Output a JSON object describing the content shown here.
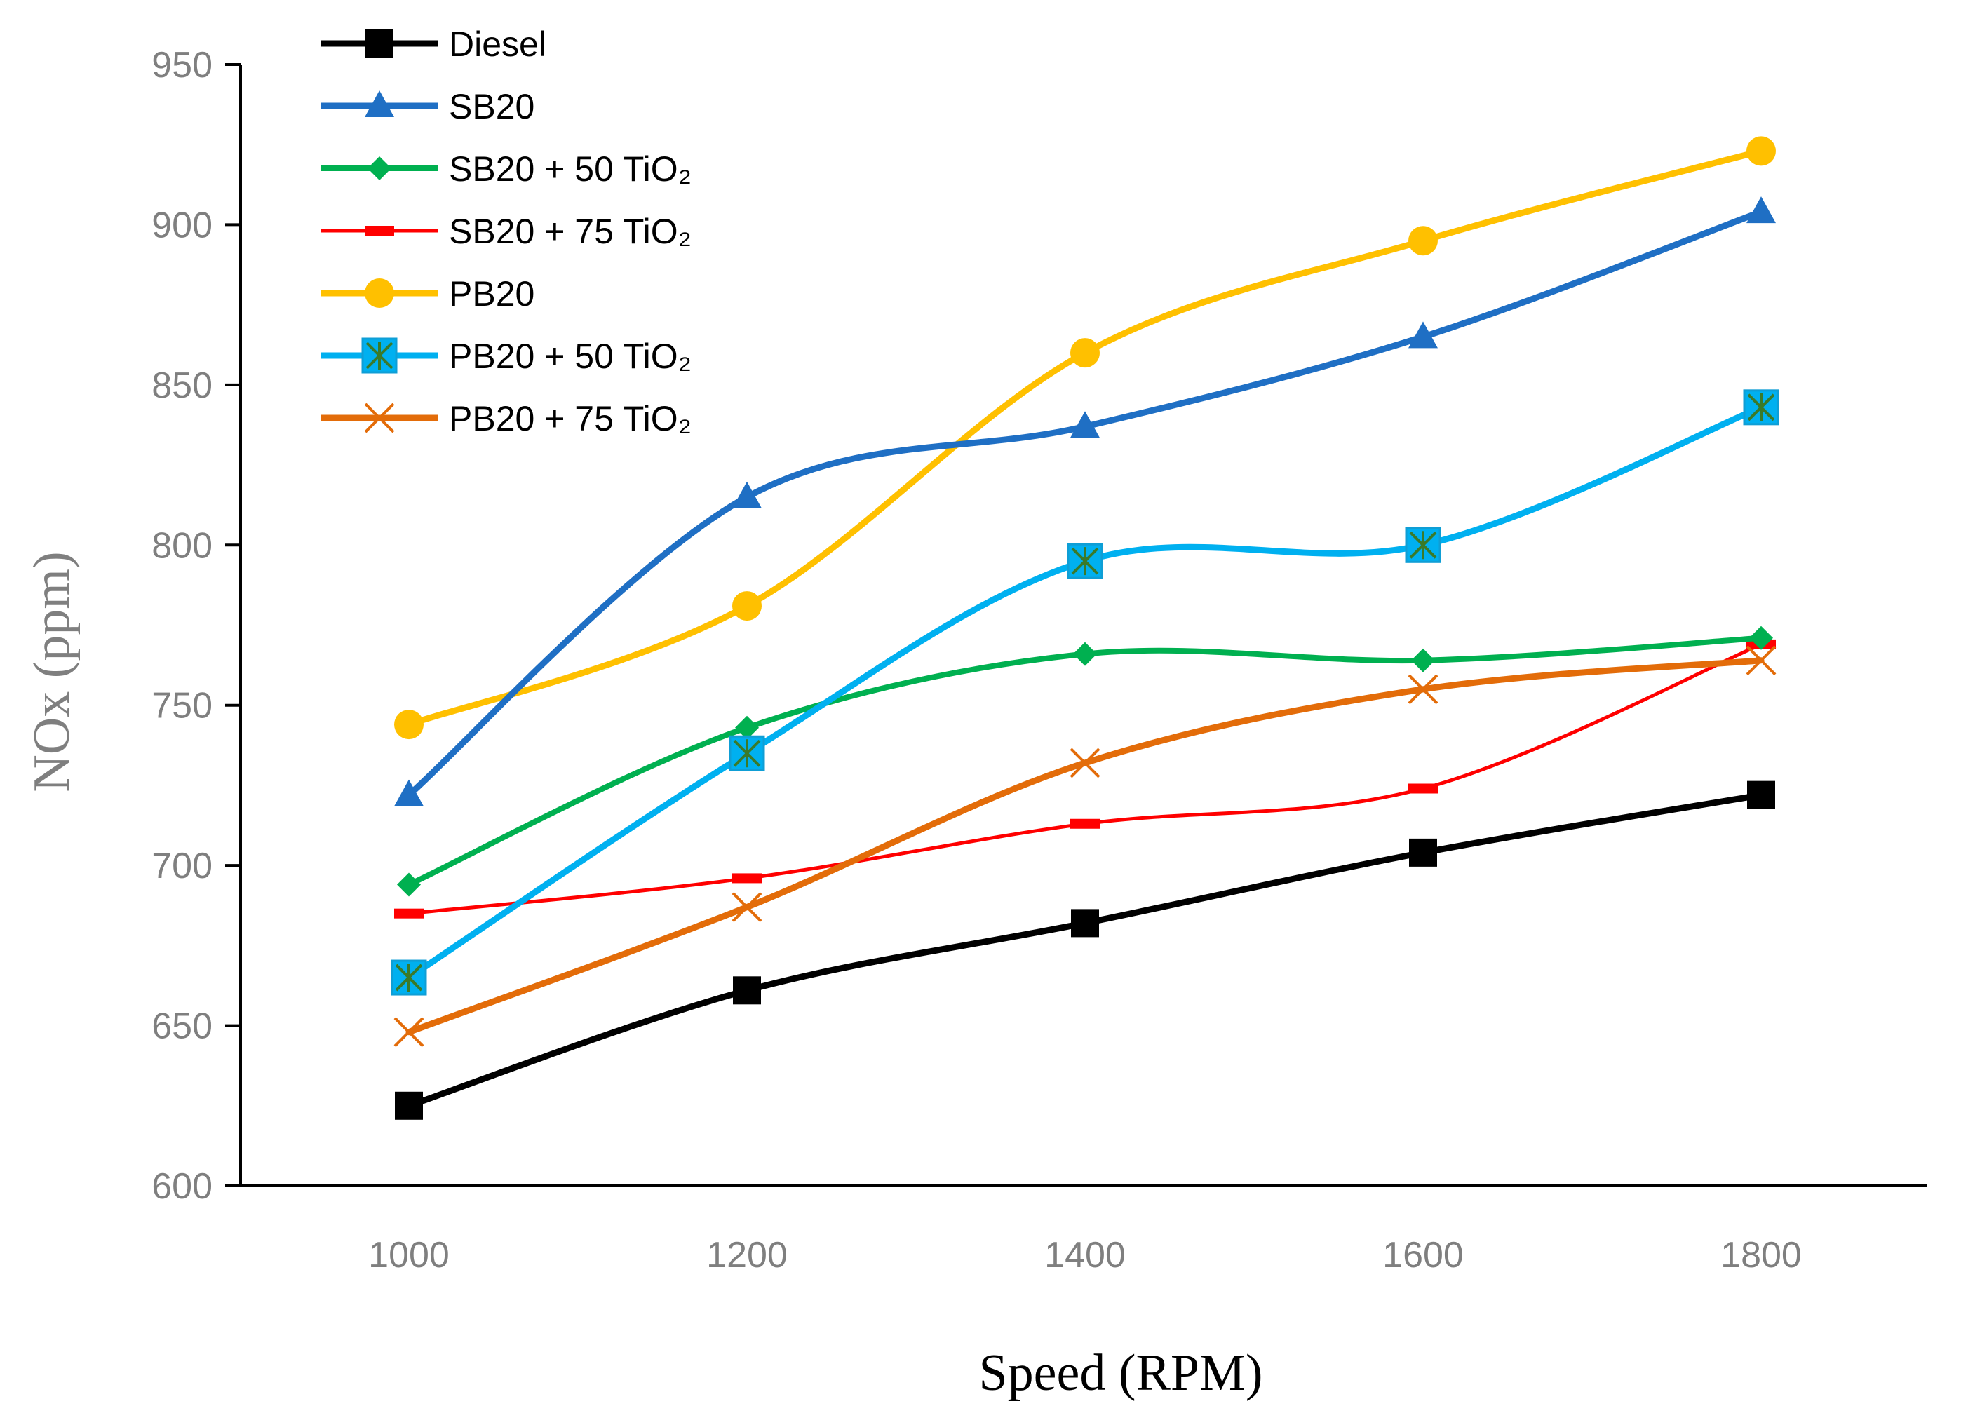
{
  "chart_data": {
    "type": "line",
    "title": "",
    "xlabel": "Speed (RPM)",
    "ylabel": "NOx (ppm)",
    "x": [
      1000,
      1200,
      1400,
      1600,
      1800
    ],
    "x_tick_labels": [
      "1000",
      "1200",
      "1400",
      "1600",
      "1800"
    ],
    "ylim": [
      600,
      950
    ],
    "y_ticks": [
      600,
      650,
      700,
      750,
      800,
      850,
      900,
      950
    ],
    "y_tick_labels": [
      "600",
      "650",
      "700",
      "750",
      "800",
      "850",
      "900",
      "950"
    ],
    "grid": false,
    "legend_position": "top-left",
    "series": [
      {
        "name": "Diesel",
        "color": "#000000",
        "marker": "square",
        "values": [
          625,
          661,
          682,
          704,
          722
        ]
      },
      {
        "name": "SB20",
        "color": "#1f6fc4",
        "marker": "triangle",
        "values": [
          722,
          815,
          837,
          865,
          904
        ]
      },
      {
        "name": "SB20 + 50 TiO₂",
        "color": "#00b050",
        "marker": "diamond",
        "values": [
          694,
          743,
          766,
          764,
          771
        ]
      },
      {
        "name": "SB20 + 75 TiO₂",
        "color": "#ff0000",
        "marker": "dash",
        "values": [
          685,
          696,
          713,
          724,
          769
        ]
      },
      {
        "name": "PB20",
        "color": "#ffc000",
        "marker": "circle",
        "values": [
          744,
          781,
          860,
          895,
          923
        ]
      },
      {
        "name": "PB20 + 50 TiO₂",
        "color": "#00b0f0",
        "marker": "square-star",
        "values": [
          665,
          735,
          795,
          800,
          843
        ]
      },
      {
        "name": "PB20 + 75 TiO₂",
        "color": "#e36c09",
        "marker": "x",
        "values": [
          648,
          687,
          732,
          755,
          764
        ]
      }
    ]
  }
}
